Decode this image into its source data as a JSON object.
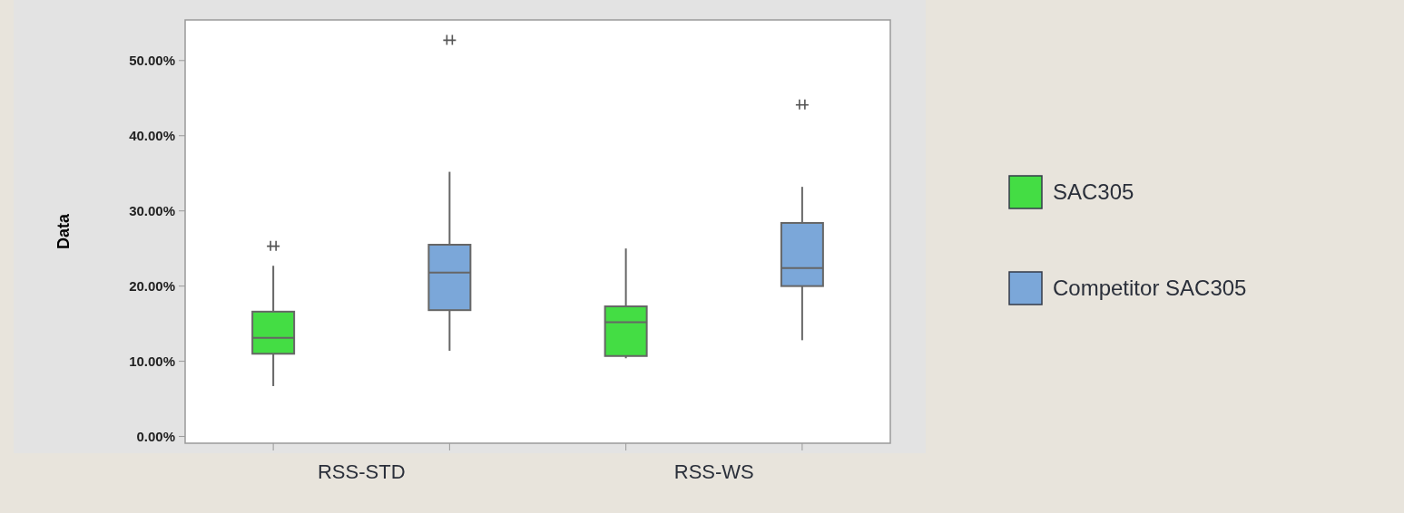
{
  "chart_data": {
    "type": "box",
    "ylabel": "Data",
    "categories": [
      "RSS-STD",
      "RSS-WS"
    ],
    "ylim": [
      -0.9,
      55.4
    ],
    "yticks": [
      {
        "value": 0,
        "label": "0.00%"
      },
      {
        "value": 10,
        "label": "10.00%"
      },
      {
        "value": 20,
        "label": "20.00%"
      },
      {
        "value": 30,
        "label": "30.00%"
      },
      {
        "value": 40,
        "label": "40.00%"
      },
      {
        "value": 50,
        "label": "50.00%"
      }
    ],
    "legend": "right",
    "series": [
      {
        "name": "SAC305",
        "color": "#44dd44",
        "boxes": [
          {
            "low": 6.7,
            "q1": 11.0,
            "median": 13.1,
            "q3": 16.6,
            "high": 22.7,
            "outliers": [
              25.3
            ]
          },
          {
            "low": 10.4,
            "q1": 10.7,
            "median": 15.2,
            "q3": 17.3,
            "high": 25.0
          }
        ]
      },
      {
        "name": "Competitor SAC305",
        "color": "#7ba7d9",
        "boxes": [
          {
            "low": 11.4,
            "q1": 16.8,
            "median": 21.8,
            "q3": 25.5,
            "high": 35.2,
            "outliers": [
              52.7
            ]
          },
          {
            "low": 12.8,
            "q1": 20.0,
            "median": 22.4,
            "q3": 28.4,
            "high": 33.2,
            "outliers": [
              44.1
            ]
          }
        ]
      }
    ]
  }
}
